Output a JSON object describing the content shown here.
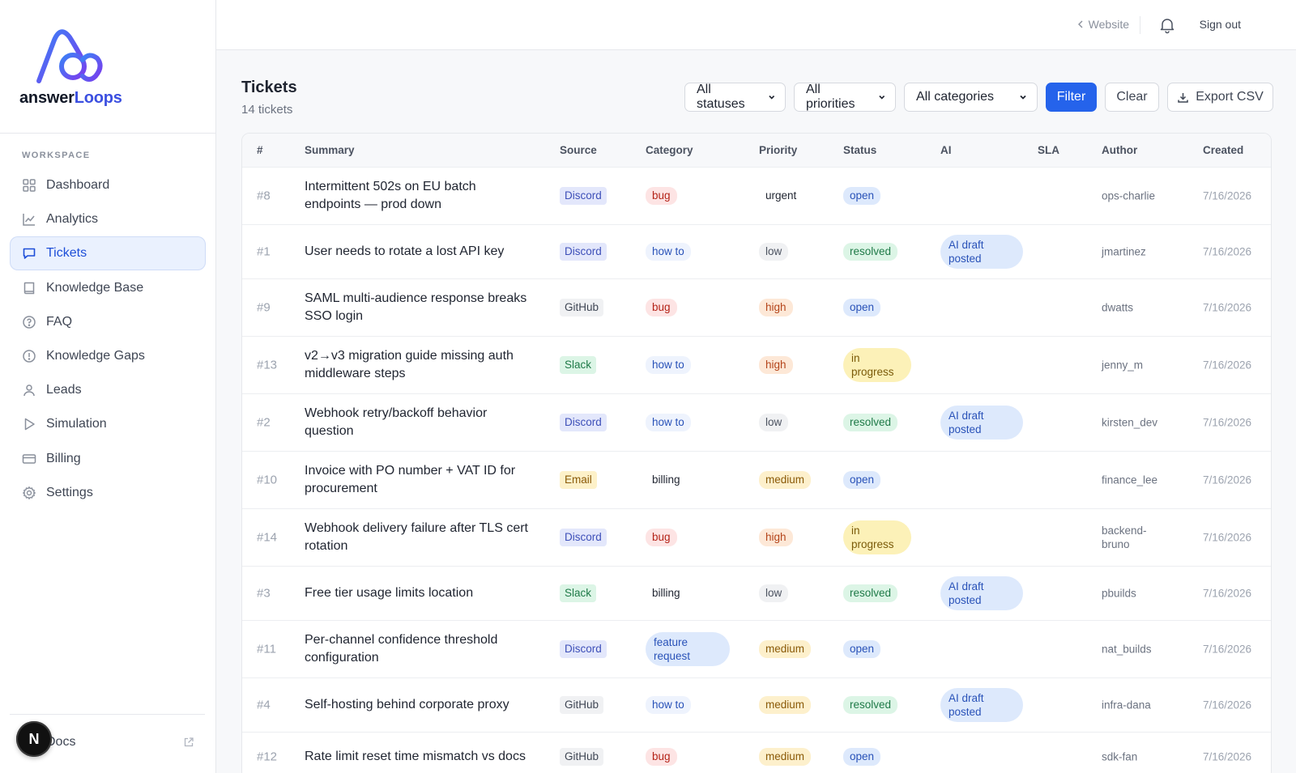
{
  "brand": {
    "name_a": "answer",
    "name_b": "Loops"
  },
  "sidebar": {
    "section_label": "WORKSPACE",
    "items": [
      {
        "label": "Dashboard",
        "icon": "grid-icon"
      },
      {
        "label": "Analytics",
        "icon": "chart-line-icon"
      },
      {
        "label": "Tickets",
        "icon": "chat-bubble-icon",
        "active": true
      },
      {
        "label": "Knowledge Base",
        "icon": "book-icon"
      },
      {
        "label": "FAQ",
        "icon": "question-circle-icon"
      },
      {
        "label": "Knowledge Gaps",
        "icon": "alert-circle-icon"
      },
      {
        "label": "Leads",
        "icon": "user-icon"
      },
      {
        "label": "Simulation",
        "icon": "play-icon"
      },
      {
        "label": "Billing",
        "icon": "credit-card-icon"
      },
      {
        "label": "Settings",
        "icon": "gear-icon"
      }
    ],
    "docs_label": "Docs",
    "badge_letter": "N"
  },
  "topbar": {
    "website": "Website",
    "signout": "Sign out"
  },
  "header": {
    "title": "Tickets",
    "count": "14 tickets"
  },
  "filters": {
    "status": "All statuses",
    "priority": "All priorities",
    "category": "All categories",
    "filter_btn": "Filter",
    "clear_btn": "Clear",
    "export_btn": "Export CSV"
  },
  "table": {
    "headers": [
      "#",
      "Summary",
      "Source",
      "Category",
      "Priority",
      "Status",
      "AI",
      "SLA",
      "Author",
      "Created"
    ],
    "rows": [
      {
        "id": "#8",
        "summary": "Intermittent 502s on EU batch endpoints — prod down",
        "source": "Discord",
        "category": "bug",
        "priority": "urgent",
        "status": "open",
        "ai": "",
        "sla": "",
        "author": "ops-charlie",
        "created": "7/16/2026"
      },
      {
        "id": "#1",
        "summary": "User needs to rotate a lost API key",
        "source": "Discord",
        "category": "how to",
        "priority": "low",
        "status": "resolved",
        "ai": "AI draft posted",
        "sla": "",
        "author": "jmartinez",
        "created": "7/16/2026"
      },
      {
        "id": "#9",
        "summary": "SAML multi-audience response breaks SSO login",
        "source": "GitHub",
        "category": "bug",
        "priority": "high",
        "status": "open",
        "ai": "",
        "sla": "",
        "author": "dwatts",
        "created": "7/16/2026"
      },
      {
        "id": "#13",
        "summary": "v2→v3 migration guide missing auth middleware steps",
        "source": "Slack",
        "category": "how to",
        "priority": "high",
        "status": "in progress",
        "ai": "",
        "sla": "",
        "author": "jenny_m",
        "created": "7/16/2026"
      },
      {
        "id": "#2",
        "summary": "Webhook retry/backoff behavior question",
        "source": "Discord",
        "category": "how to",
        "priority": "low",
        "status": "resolved",
        "ai": "AI draft posted",
        "sla": "",
        "author": "kirsten_dev",
        "created": "7/16/2026"
      },
      {
        "id": "#10",
        "summary": "Invoice with PO number + VAT ID for procurement",
        "source": "Email",
        "category": "billing",
        "priority": "medium",
        "status": "open",
        "ai": "",
        "sla": "",
        "author": "finance_lee",
        "created": "7/16/2026"
      },
      {
        "id": "#14",
        "summary": "Webhook delivery failure after TLS cert rotation",
        "source": "Discord",
        "category": "bug",
        "priority": "high",
        "status": "in progress",
        "ai": "",
        "sla": "",
        "author": "backend-bruno",
        "created": "7/16/2026"
      },
      {
        "id": "#3",
        "summary": "Free tier usage limits location",
        "source": "Slack",
        "category": "billing",
        "priority": "low",
        "status": "resolved",
        "ai": "AI draft posted",
        "sla": "",
        "author": "pbuilds",
        "created": "7/16/2026"
      },
      {
        "id": "#11",
        "summary": "Per-channel confidence threshold configuration",
        "source": "Discord",
        "category": "feature request",
        "priority": "medium",
        "status": "open",
        "ai": "",
        "sla": "",
        "author": "nat_builds",
        "created": "7/16/2026"
      },
      {
        "id": "#4",
        "summary": "Self-hosting behind corporate proxy",
        "source": "GitHub",
        "category": "how to",
        "priority": "medium",
        "status": "resolved",
        "ai": "AI draft posted",
        "sla": "",
        "author": "infra-dana",
        "created": "7/16/2026"
      },
      {
        "id": "#12",
        "summary": "Rate limit reset time mismatch vs docs",
        "source": "GitHub",
        "category": "bug",
        "priority": "medium",
        "status": "open",
        "ai": "",
        "sla": "",
        "author": "sdk-fan",
        "created": "7/16/2026"
      }
    ]
  },
  "colors": {
    "accent": "#2563eb",
    "source": {
      "Discord": [
        "#e3e7fb",
        "#3d4fb8"
      ],
      "GitHub": [
        "#f0f1f3",
        "#3f4654"
      ],
      "Slack": [
        "#dcf5e6",
        "#1f7a48"
      ],
      "Email": [
        "#fdf1c9",
        "#8a5a08"
      ]
    },
    "category": {
      "bug": [
        "#fde4e4",
        "#b42318"
      ],
      "how to": [
        "#eef3fd",
        "#2952b8"
      ],
      "billing": [
        "transparent",
        "#1f2430"
      ],
      "feature request": [
        "#dde9fc",
        "#2952b8"
      ]
    },
    "priority": {
      "urgent": [
        "transparent",
        "#1f2430"
      ],
      "low": [
        "#f0f1f3",
        "#4b5260"
      ],
      "high": [
        "#fde8d7",
        "#b4441a"
      ],
      "medium": [
        "#fdf0cc",
        "#8a5a08"
      ]
    },
    "status": {
      "open": [
        "#dde9fc",
        "#2952b8"
      ],
      "resolved": [
        "#dcf5e6",
        "#1f7a48"
      ],
      "in progress": [
        "#fcf1b8",
        "#7a5a08"
      ]
    },
    "ai": [
      "#dde9fc",
      "#2952b8"
    ]
  }
}
